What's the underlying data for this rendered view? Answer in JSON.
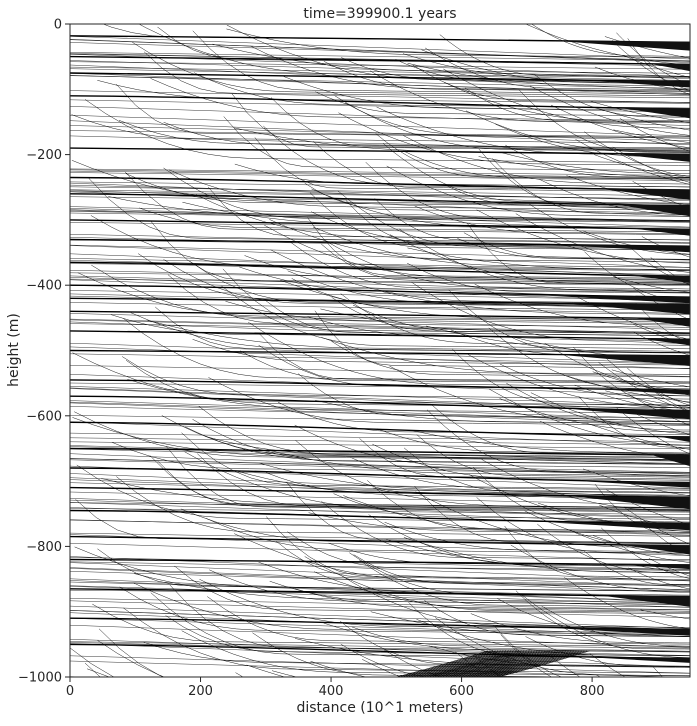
{
  "chart_data": {
    "type": "line",
    "title": "time=399900.1 years",
    "xlabel": "distance (10^1 meters)",
    "ylabel": "height (m)",
    "xlim": [
      0,
      950
    ],
    "ylim": [
      -1000,
      0
    ],
    "x_ticks": [
      0,
      200,
      400,
      600,
      800
    ],
    "y_ticks": [
      0,
      -200,
      -400,
      -600,
      -800,
      -1000
    ],
    "x_tick_labels": [
      "0",
      "200",
      "400",
      "600",
      "800"
    ],
    "y_tick_labels": [
      "0",
      "−200",
      "−400",
      "−600",
      "−800",
      "−1000"
    ],
    "grid": false,
    "legend": "none",
    "line_color": "#000000",
    "background": "#ffffff",
    "description_note": "Dense family of thin black horizon lines; thick black lines are horizontal beds near these depths (m).",
    "thick_bed_depths": [
      -18,
      -50,
      -75,
      -110,
      -190,
      -235,
      -260,
      -300,
      -330,
      -365,
      -400,
      -420,
      -440,
      -470,
      -500,
      -545,
      -570,
      -610,
      -650,
      -680,
      -710,
      -745,
      -785,
      -820,
      -865,
      -910,
      -950
    ]
  }
}
